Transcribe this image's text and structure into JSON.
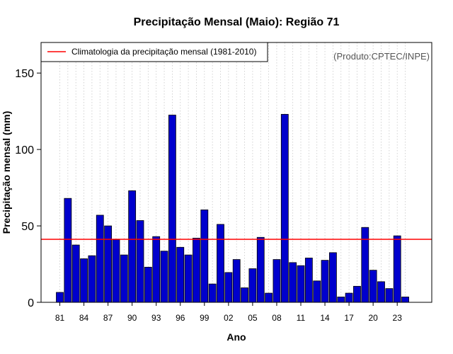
{
  "chart_data": {
    "type": "bar",
    "title": "Precipitação Mensal (Maio): Região 71",
    "xlabel": "Ano",
    "ylabel": "Precipitação mensal (mm)",
    "ylim": [
      0,
      170
    ],
    "yticks": [
      "0",
      "50",
      "100",
      "150"
    ],
    "ytick_values": [
      0,
      50,
      100,
      150
    ],
    "categories": [
      "1981",
      "1982",
      "1983",
      "1984",
      "1985",
      "1986",
      "1987",
      "1988",
      "1989",
      "1990",
      "1991",
      "1992",
      "1993",
      "1994",
      "1995",
      "1996",
      "1997",
      "1998",
      "1999",
      "2000",
      "2001",
      "2002",
      "2003",
      "2004",
      "2005",
      "2006",
      "2007",
      "2008",
      "2009",
      "2010",
      "2011",
      "2012",
      "2013",
      "2014",
      "2015",
      "2016",
      "2017",
      "2018",
      "2019",
      "2020",
      "2021",
      "2022",
      "2023",
      "2024"
    ],
    "xtick_labels": [
      "81",
      "84",
      "87",
      "90",
      "93",
      "96",
      "99",
      "02",
      "05",
      "08",
      "11",
      "14",
      "17",
      "20",
      "23"
    ],
    "xtick_indices": [
      0,
      3,
      6,
      9,
      12,
      15,
      18,
      21,
      24,
      27,
      30,
      33,
      36,
      39,
      42
    ],
    "values": [
      6.5,
      68,
      37.5,
      28.5,
      30.5,
      57,
      50,
      41,
      31,
      73,
      53.5,
      23,
      43,
      33.5,
      122.5,
      36,
      31,
      42,
      60.5,
      12,
      51,
      19.5,
      28,
      9.5,
      22,
      42.5,
      6,
      28,
      123,
      26,
      24,
      29,
      14,
      27.5,
      32.5,
      3.5,
      6,
      10.5,
      49,
      21,
      13.5,
      9,
      43.5,
      3.5
    ],
    "bar_color": "#0000CD",
    "reference_line": {
      "label": "Climatologia da precipitação mensal (1981-2010)",
      "value": 41.2,
      "color": "#FF0000"
    },
    "grid": "vertical dotted",
    "legend_position": "top-left"
  },
  "credit": "(Produto:CPTEC/INPE)"
}
